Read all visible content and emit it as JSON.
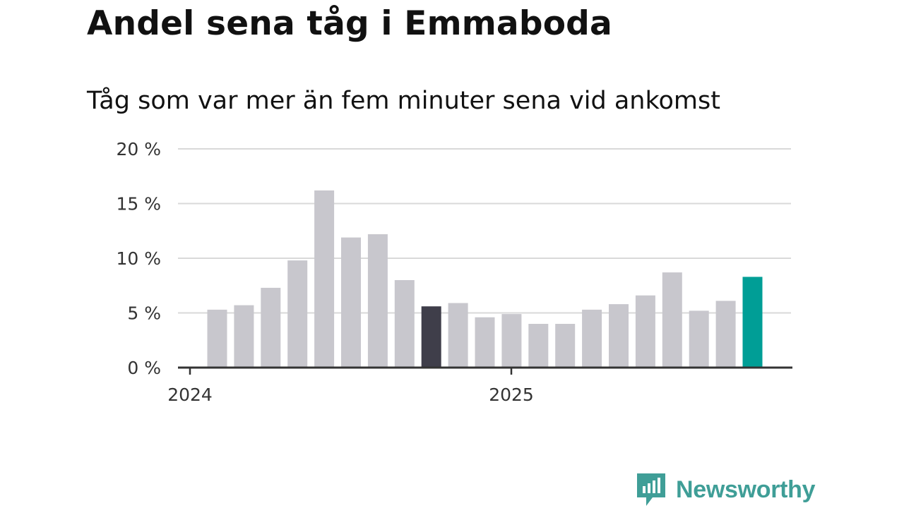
{
  "header": {
    "title": "Andel sena tåg i Emmaboda",
    "subtitle": "Tåg som var mer än fem minuter sena vid ankomst"
  },
  "brand": {
    "name": "Newsworthy",
    "color": "#3f9e97"
  },
  "colors": {
    "bar_default": "#c8c7cd",
    "bar_highlight_dark": "#3f3e4a",
    "bar_highlight_latest": "#009e96",
    "gridline": "#d9d9d9",
    "axis": "#333333"
  },
  "chart_data": {
    "type": "bar",
    "title": "Andel sena tåg i Emmaboda",
    "subtitle": "Tåg som var mer än fem minuter sena vid ankomst",
    "xlabel": "",
    "ylabel": "",
    "ylim": [
      0,
      20
    ],
    "yticks": [
      0,
      5,
      10,
      15,
      20
    ],
    "ytick_labels": [
      "0 %",
      "5 %",
      "10 %",
      "15 %",
      "20 %"
    ],
    "xtick_labels": [
      "2024",
      "2025"
    ],
    "grid": true,
    "legend": "none",
    "values": [
      5.3,
      5.7,
      7.3,
      9.8,
      16.2,
      11.9,
      12.2,
      8.0,
      5.6,
      5.9,
      4.6,
      4.9,
      4.0,
      4.0,
      5.3,
      5.8,
      6.6,
      8.7,
      5.2,
      6.1,
      8.3
    ],
    "bar_colors": [
      "default",
      "default",
      "default",
      "default",
      "default",
      "default",
      "default",
      "default",
      "dark",
      "default",
      "default",
      "default",
      "default",
      "default",
      "default",
      "default",
      "default",
      "default",
      "default",
      "default",
      "latest"
    ]
  }
}
